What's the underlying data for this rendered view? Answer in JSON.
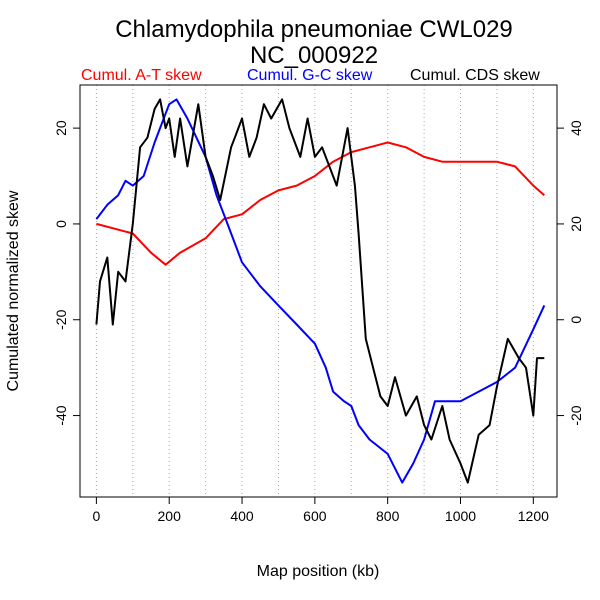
{
  "chart_data": {
    "type": "line",
    "title": "Chlamydophila pneumoniae CWL029",
    "subtitle": "NC_000922",
    "xlabel": "Map position (kb)",
    "ylabel": "Cumulated normalized skew",
    "xlim": [
      -45,
      1265
    ],
    "ylim_left": [
      -57,
      29
    ],
    "ylim_right": [
      -37,
      49
    ],
    "x_ticks": [
      0,
      200,
      400,
      600,
      800,
      1000,
      1200
    ],
    "y_ticks_left": [
      -40,
      -20,
      0,
      20
    ],
    "y_ticks_right": [
      -20,
      0,
      20,
      40
    ],
    "grid_x": [
      0,
      100,
      200,
      300,
      400,
      500,
      600,
      700,
      800,
      900,
      1000,
      1100,
      1200
    ],
    "legend": [
      {
        "label": "Cumul. A-T skew",
        "color": "#ff0000"
      },
      {
        "label": "Cumul. G-C skew",
        "color": "#0000ff"
      },
      {
        "label": "Cumul. CDS skew",
        "color": "#000000"
      }
    ],
    "series": [
      {
        "name": "Cumul. A-T skew",
        "axis": "left",
        "color": "#ff0000",
        "x": [
          0,
          50,
          100,
          150,
          190,
          230,
          300,
          350,
          400,
          450,
          500,
          550,
          600,
          650,
          700,
          750,
          800,
          850,
          900,
          950,
          1000,
          1050,
          1100,
          1150,
          1200,
          1230
        ],
        "y": [
          0,
          -1,
          -2,
          -6,
          -8.5,
          -6,
          -3,
          1,
          2,
          5,
          7,
          8,
          10,
          13,
          15,
          16,
          17,
          16,
          14,
          13,
          13,
          13,
          13,
          12,
          8,
          6
        ]
      },
      {
        "name": "Cumul. G-C skew",
        "axis": "left",
        "color": "#0000ff",
        "x": [
          0,
          30,
          60,
          80,
          100,
          130,
          160,
          180,
          200,
          220,
          250,
          300,
          330,
          360,
          400,
          450,
          500,
          550,
          600,
          630,
          650,
          680,
          700,
          720,
          750,
          800,
          840,
          870,
          900,
          930,
          970,
          1000,
          1050,
          1100,
          1150,
          1200,
          1230
        ],
        "y": [
          1,
          4,
          6,
          9,
          8,
          10,
          17,
          21,
          25,
          26,
          22,
          14,
          6,
          0,
          -8,
          -13,
          -17,
          -21,
          -25,
          -30,
          -35,
          -37,
          -38,
          -42,
          -45,
          -48,
          -54,
          -50,
          -45,
          -37,
          -37,
          -37,
          -35,
          -33,
          -30,
          -22,
          -17
        ]
      },
      {
        "name": "Cumul. CDS skew",
        "axis": "right",
        "color": "#000000",
        "x": [
          0,
          10,
          30,
          45,
          60,
          80,
          100,
          120,
          140,
          160,
          175,
          190,
          200,
          215,
          230,
          250,
          280,
          300,
          320,
          340,
          370,
          380,
          400,
          420,
          440,
          460,
          480,
          510,
          530,
          560,
          580,
          600,
          620,
          660,
          690,
          710,
          720,
          740,
          760,
          780,
          800,
          820,
          850,
          880,
          900,
          920,
          950,
          970,
          1000,
          1020,
          1050,
          1080,
          1100,
          1130,
          1160,
          1180,
          1200,
          1210,
          1230
        ],
        "y": [
          -1,
          8,
          13,
          -1,
          10,
          8,
          20,
          36,
          38,
          44,
          46,
          40,
          42,
          34,
          42,
          32,
          45,
          34,
          30,
          25,
          36,
          38,
          42,
          34,
          38,
          45,
          42,
          46,
          40,
          34,
          42,
          34,
          36,
          28,
          40,
          28,
          18,
          -4,
          -10,
          -16,
          -18,
          -12,
          -20,
          -16,
          -22,
          -25,
          -18,
          -25,
          -30,
          -34,
          -24,
          -22,
          -14,
          -4,
          -8,
          -10,
          -20,
          -8,
          -8
        ]
      }
    ]
  }
}
